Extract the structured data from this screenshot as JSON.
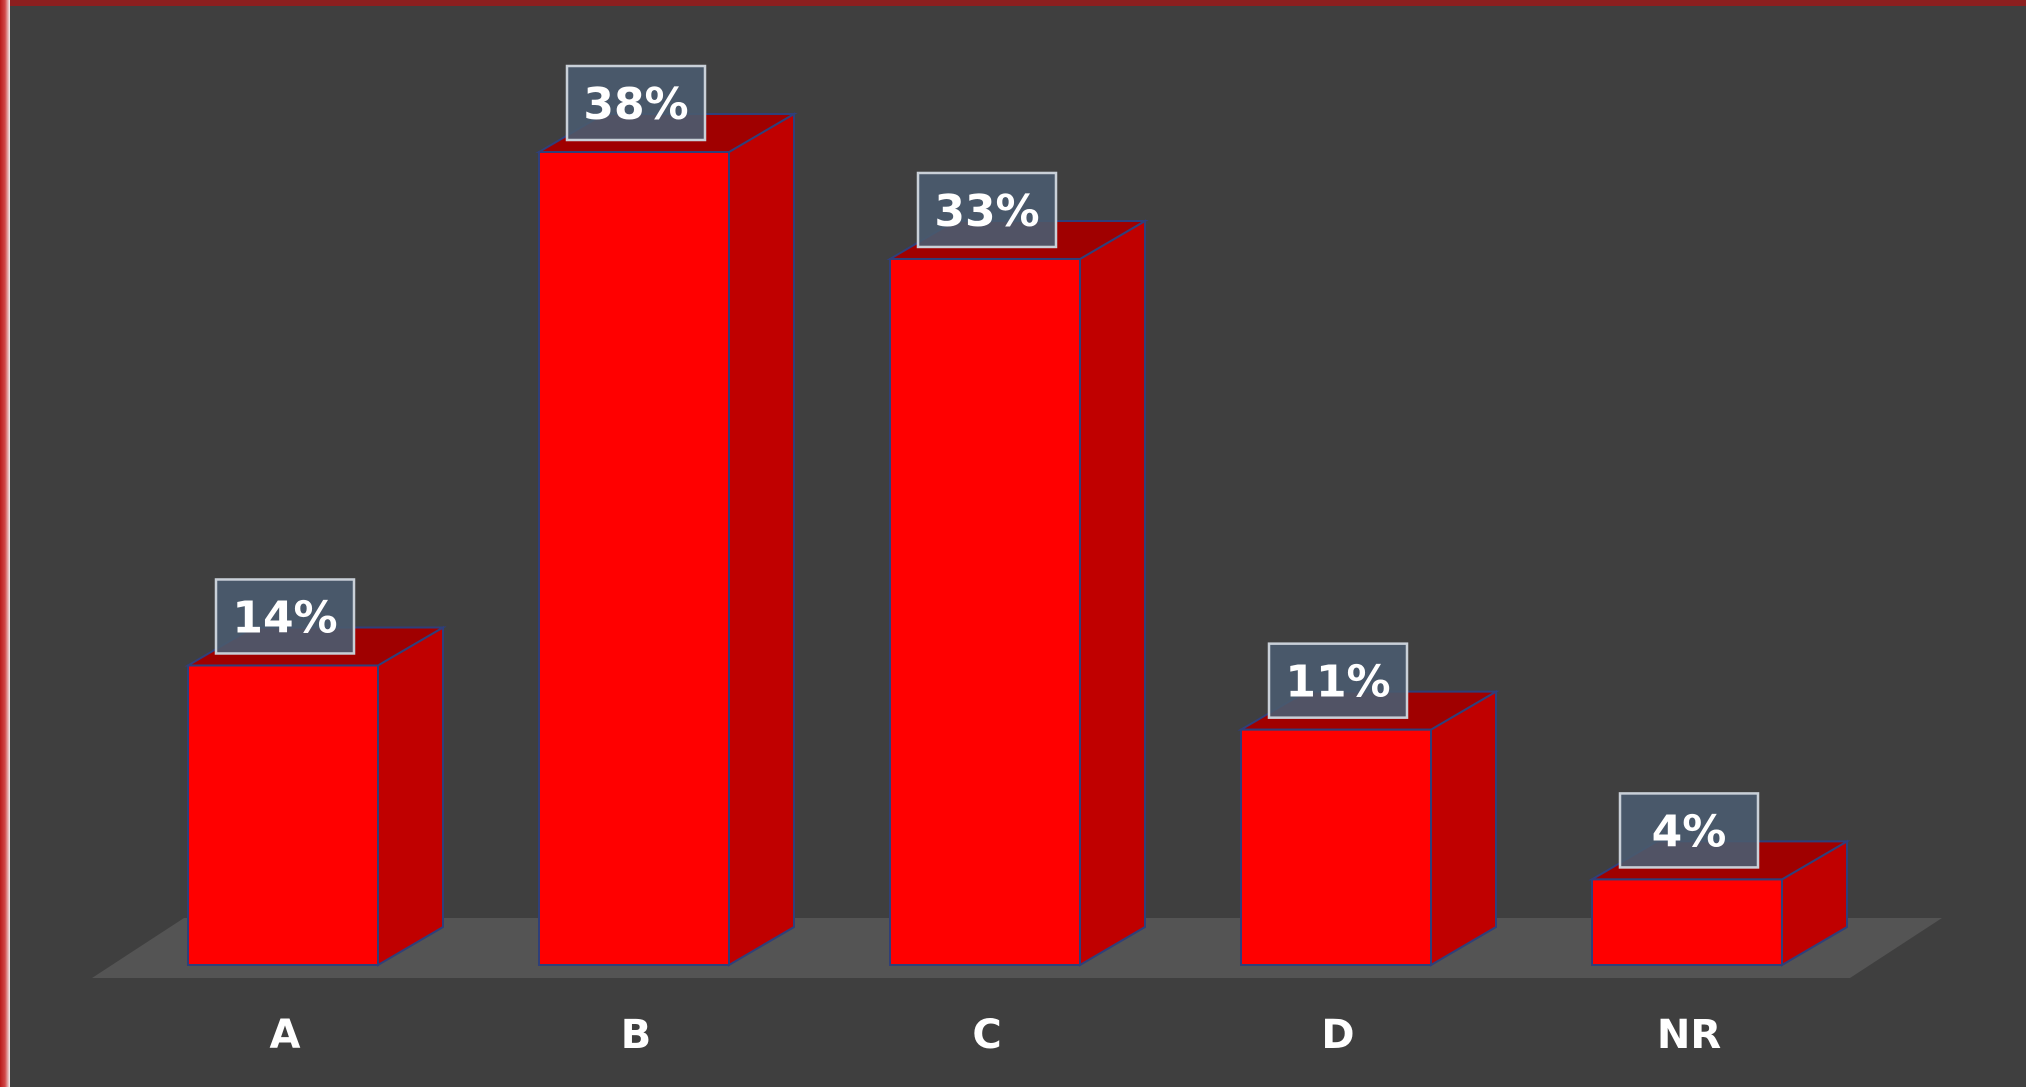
{
  "chart_data": {
    "type": "bar",
    "categories": [
      "A",
      "B",
      "C",
      "D",
      "NR"
    ],
    "values": [
      14,
      38,
      33,
      11,
      4
    ],
    "value_labels": [
      "14%",
      "38%",
      "33%",
      "11%",
      "4%"
    ],
    "ylim": [
      0,
      38
    ],
    "grid": false,
    "legend": "none",
    "three_d": true,
    "colors": {
      "background": "#3f3f3f",
      "floor": "#545454",
      "bar_front": "#ff0000",
      "bar_side": "#c00000",
      "bar_top": "#a00000",
      "bar_outline": "#2f3f7a",
      "label_box_fill": "#4a5a6e",
      "label_box_stroke": "#c9d0d8",
      "text": "#ffffff"
    }
  }
}
